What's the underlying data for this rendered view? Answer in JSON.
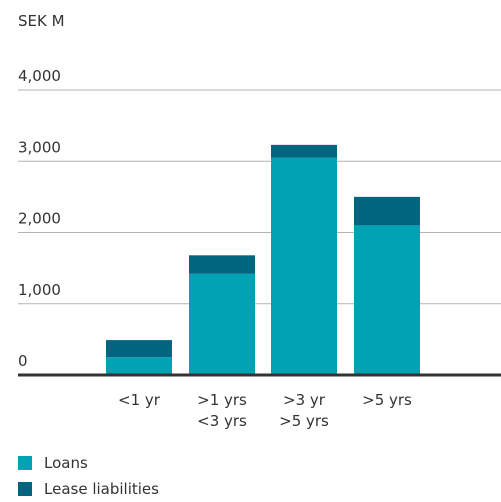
{
  "chart_data": {
    "type": "bar",
    "stacked": true,
    "unit_label": "SEK M",
    "categories": [
      [
        "<1 yr"
      ],
      [
        ">1 yrs",
        "<3 yrs"
      ],
      [
        ">3 yr",
        ">5 yrs"
      ],
      [
        ">5 yrs"
      ]
    ],
    "series": [
      {
        "name": "Loans",
        "color": "#00a3b4",
        "values": [
          250,
          1420,
          3050,
          2100
        ]
      },
      {
        "name": "Lease liabilities",
        "color": "#006680",
        "values": [
          240,
          260,
          180,
          400
        ]
      }
    ],
    "y_ticks": [
      "0",
      "1,000",
      "2,000",
      "3,000",
      "4,000"
    ],
    "y_tick_values": [
      0,
      1000,
      2000,
      3000,
      4000
    ],
    "ylim": [
      0,
      4000
    ],
    "grid": true,
    "legend_position": "bottom-left"
  }
}
